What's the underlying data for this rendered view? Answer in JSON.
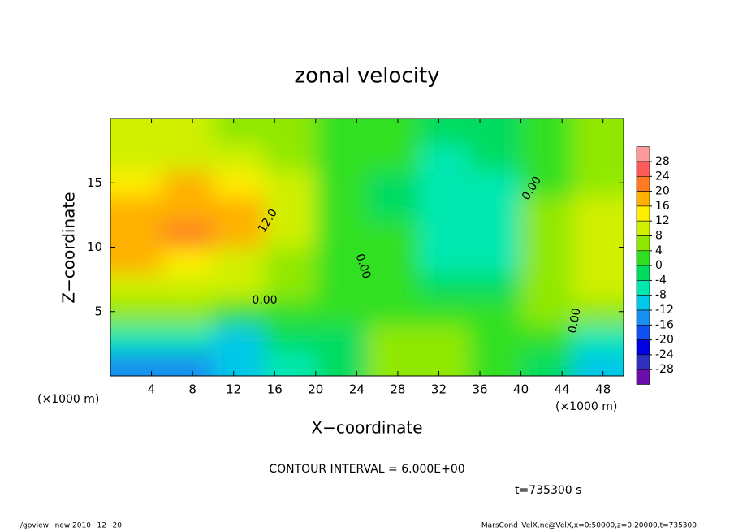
{
  "chart_data": {
    "type": "contour",
    "title": "zonal velocity",
    "xlabel": "X−coordinate",
    "ylabel": "Z−coordinate",
    "x_unit": "(×1000 m)",
    "y_unit": "(×1000 m)",
    "xlim": [
      0,
      50
    ],
    "ylim": [
      0,
      20
    ],
    "xticks": [
      4,
      8,
      12,
      16,
      20,
      24,
      28,
      32,
      36,
      40,
      44,
      48
    ],
    "yticks": [
      5,
      10,
      15
    ],
    "x": [
      2.5,
      7.5,
      12.5,
      17.5,
      22.5,
      27.5,
      32.5,
      37.5,
      42.5,
      47.5
    ],
    "y": [
      1,
      3,
      5,
      7,
      9,
      11,
      13,
      15,
      17,
      19
    ],
    "z": [
      [
        -16,
        -14,
        -12,
        -8,
        -4,
        6,
        4,
        2,
        -2,
        -12
      ],
      [
        -6,
        -8,
        -10,
        -4,
        -2,
        4,
        6,
        2,
        0,
        -6
      ],
      [
        4,
        4,
        2,
        2,
        0,
        2,
        2,
        0,
        4,
        4
      ],
      [
        10,
        8,
        8,
        4,
        2,
        0,
        -2,
        -2,
        4,
        8
      ],
      [
        16,
        14,
        10,
        6,
        2,
        0,
        -6,
        -6,
        4,
        10
      ],
      [
        18,
        20,
        16,
        8,
        2,
        0,
        -8,
        -8,
        6,
        8
      ],
      [
        16,
        18,
        18,
        10,
        2,
        -2,
        -8,
        -6,
        4,
        8
      ],
      [
        14,
        16,
        14,
        8,
        2,
        -2,
        -8,
        -6,
        2,
        6
      ],
      [
        10,
        10,
        10,
        6,
        2,
        0,
        -6,
        -4,
        2,
        4
      ],
      [
        8,
        8,
        6,
        4,
        2,
        0,
        -4,
        -2,
        2,
        4
      ]
    ],
    "colorbar_ticks": [
      28,
      24,
      20,
      16,
      12,
      8,
      4,
      0,
      -4,
      -8,
      -12,
      -16,
      -20,
      -24,
      -28
    ],
    "colorbar_colors": [
      "#ff9a9a",
      "#ff5a5a",
      "#ff7a20",
      "#ffb000",
      "#ffee00",
      "#d0f000",
      "#90e800",
      "#30e020",
      "#00dc60",
      "#00e8b0",
      "#00c8e8",
      "#1890f0",
      "#1050f0",
      "#0000e0",
      "#3030c0",
      "#6a0dad"
    ],
    "contour_labels": [
      "12.0",
      "0.00",
      "0.00",
      "0.00",
      "0.00"
    ],
    "footer_note": "CONTOUR INTERVAL = 6.000E+00",
    "time_label": "t=735300 s",
    "left_credit": "./gpview−new  2010−12−20",
    "right_credit": "MarsCond_VelX.nc@VelX,x=0:50000,z=0:20000,t=735300"
  }
}
